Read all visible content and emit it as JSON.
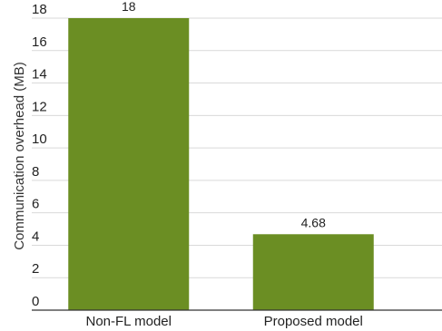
{
  "chart_data": {
    "type": "bar",
    "categories": [
      "Non-FL model",
      "Proposed model"
    ],
    "values": [
      18,
      4.68
    ],
    "data_labels": [
      "18",
      "4.68"
    ],
    "title": "",
    "xlabel": "",
    "ylabel": "Communication overhead (MB)",
    "ylim": [
      0,
      18
    ],
    "yticks": [
      0,
      2,
      4,
      6,
      8,
      10,
      12,
      14,
      16,
      18
    ],
    "grid": true,
    "legend": "none",
    "bar_color": "#6b8e23"
  }
}
